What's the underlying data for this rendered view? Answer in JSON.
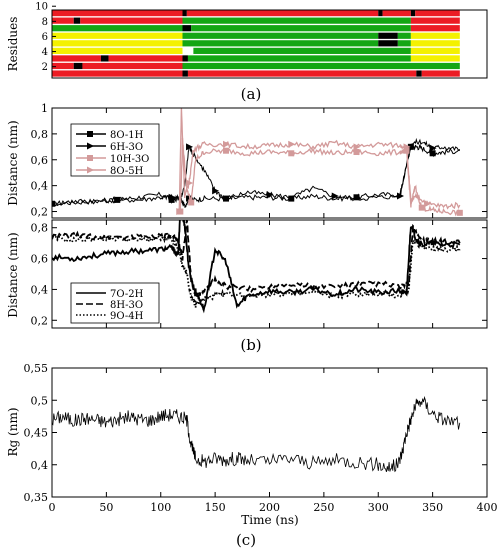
{
  "panel_labels": {
    "a": "(a)",
    "b": "(b)",
    "c": "(c)"
  },
  "colors": {
    "ss_red": "#ec1c24",
    "ss_yellow": "#f4f100",
    "ss_green": "#14a614",
    "ss_black": "#000000",
    "pink": "#d39a9a",
    "line": "#000000"
  },
  "chart_data": [
    {
      "type": "heatmap",
      "panel": "(a)",
      "title": "",
      "xlabel": "",
      "ylabel": "Residues",
      "x_range_ns": [
        0,
        375
      ],
      "ylim": [
        1,
        10
      ],
      "yticks": [
        "2",
        "4",
        "6",
        "8",
        "10"
      ],
      "legend": "none",
      "rows": [
        {
          "residue": 1,
          "segments": [
            [
              "red",
              0,
              120
            ],
            [
              "black",
              120,
              125
            ],
            [
              "red",
              125,
              335
            ],
            [
              "black",
              335,
              340
            ],
            [
              "red",
              340,
              375
            ]
          ]
        },
        {
          "residue": 2,
          "segments": [
            [
              "red",
              0,
              20
            ],
            [
              "black",
              20,
              28
            ],
            [
              "red",
              28,
              120
            ],
            [
              "green",
              120,
              375
            ]
          ]
        },
        {
          "residue": 3,
          "segments": [
            [
              "red",
              0,
              45
            ],
            [
              "black",
              45,
              52
            ],
            [
              "red",
              52,
              120
            ],
            [
              "black",
              120,
              125
            ],
            [
              "green",
              125,
              330
            ],
            [
              "yellow",
              330,
              375
            ]
          ]
        },
        {
          "residue": 4,
          "segments": [
            [
              "yellow",
              0,
              120
            ],
            [
              "white",
              120,
              130
            ],
            [
              "green",
              130,
              330
            ],
            [
              "yellow",
              330,
              375
            ]
          ]
        },
        {
          "residue": 5,
          "segments": [
            [
              "yellow",
              0,
              120
            ],
            [
              "green",
              120,
              300
            ],
            [
              "black",
              300,
              318
            ],
            [
              "green",
              318,
              330
            ],
            [
              "yellow",
              330,
              375
            ]
          ]
        },
        {
          "residue": 6,
          "segments": [
            [
              "yellow",
              0,
              120
            ],
            [
              "green",
              120,
              300
            ],
            [
              "black",
              300,
              318
            ],
            [
              "green",
              318,
              330
            ],
            [
              "yellow",
              330,
              375
            ]
          ]
        },
        {
          "residue": 7,
          "segments": [
            [
              "green",
              0,
              120
            ],
            [
              "black",
              120,
              128
            ],
            [
              "green",
              128,
              330
            ],
            [
              "red",
              330,
              375
            ]
          ]
        },
        {
          "residue": 8,
          "segments": [
            [
              "red",
              0,
              20
            ],
            [
              "black",
              20,
              26
            ],
            [
              "red",
              26,
              120
            ],
            [
              "green",
              120,
              330
            ],
            [
              "red",
              330,
              375
            ]
          ]
        },
        {
          "residue": 9,
          "segments": [
            [
              "red",
              0,
              120
            ],
            [
              "black",
              120,
              124
            ],
            [
              "red",
              124,
              300
            ],
            [
              "black",
              300,
              304
            ],
            [
              "red",
              304,
              330
            ],
            [
              "black",
              330,
              334
            ],
            [
              "red",
              334,
              375
            ]
          ]
        }
      ]
    },
    {
      "type": "line",
      "panel": "(b) upper",
      "title": "",
      "xlabel": "",
      "ylabel": "Distance (nm)",
      "xlim": [
        0,
        400
      ],
      "ylim": [
        0.15,
        1.0
      ],
      "yticks": [
        "0,2",
        "0,4",
        "0,6",
        "0,8",
        "1"
      ],
      "legend_placement": "top-left",
      "series": [
        {
          "name": "8O-1H",
          "color": "#000000",
          "marker": "square",
          "x": [
            0,
            20,
            40,
            60,
            80,
            100,
            110,
            118,
            122,
            126,
            130,
            140,
            160,
            180,
            200,
            220,
            240,
            260,
            280,
            300,
            320,
            330,
            335,
            340,
            350,
            360,
            375
          ],
          "y": [
            0.26,
            0.27,
            0.28,
            0.29,
            0.31,
            0.33,
            0.29,
            0.3,
            0.24,
            0.3,
            0.29,
            0.3,
            0.3,
            0.31,
            0.31,
            0.3,
            0.32,
            0.3,
            0.31,
            0.33,
            0.33,
            0.7,
            0.7,
            0.69,
            0.65,
            0.66,
            0.67
          ]
        },
        {
          "name": "6H-3O",
          "color": "#000000",
          "marker": "triangle-right",
          "x": [
            0,
            20,
            40,
            60,
            80,
            100,
            110,
            118,
            122,
            126,
            130,
            140,
            150,
            160,
            180,
            200,
            220,
            240,
            260,
            280,
            300,
            320,
            330,
            340,
            350,
            360,
            375
          ],
          "y": [
            0.26,
            0.28,
            0.28,
            0.29,
            0.29,
            0.31,
            0.31,
            0.3,
            0.4,
            0.7,
            0.64,
            0.52,
            0.36,
            0.3,
            0.35,
            0.33,
            0.31,
            0.38,
            0.32,
            0.3,
            0.31,
            0.32,
            0.73,
            0.74,
            0.69,
            0.7,
            0.68
          ]
        },
        {
          "name": "10H-3O",
          "color": "#d39a9a",
          "marker": "square",
          "x": [
            118,
            120,
            124,
            128,
            132,
            140,
            160,
            180,
            200,
            220,
            240,
            260,
            280,
            300,
            320,
            326,
            330,
            334,
            340,
            350,
            360,
            375
          ],
          "y": [
            0.2,
            0.75,
            0.38,
            0.27,
            0.6,
            0.66,
            0.67,
            0.65,
            0.66,
            0.65,
            0.67,
            0.65,
            0.66,
            0.65,
            0.66,
            0.67,
            0.25,
            0.39,
            0.23,
            0.21,
            0.2,
            0.19
          ]
        },
        {
          "name": "8O-5H",
          "color": "#d39a9a",
          "marker": "triangle-right",
          "x": [
            117,
            119,
            122,
            126,
            130,
            140,
            160,
            180,
            200,
            220,
            240,
            260,
            280,
            300,
            320,
            326,
            330,
            336,
            345,
            360,
            375
          ],
          "y": [
            0.2,
            1.0,
            0.32,
            0.42,
            0.68,
            0.72,
            0.72,
            0.7,
            0.71,
            0.72,
            0.7,
            0.73,
            0.7,
            0.72,
            0.71,
            0.7,
            0.28,
            0.32,
            0.26,
            0.24,
            0.25
          ]
        }
      ]
    },
    {
      "type": "line",
      "panel": "(b) lower",
      "title": "",
      "xlabel": "",
      "ylabel": "Distance (nm)",
      "xlim": [
        0,
        400
      ],
      "ylim": [
        0.15,
        0.85
      ],
      "yticks": [
        "0,2",
        "0,4",
        "0,6",
        "0,8"
      ],
      "legend_placement": "bottom-left",
      "series": [
        {
          "name": "7O-2H",
          "style": "solid",
          "x": [
            0,
            20,
            40,
            60,
            80,
            100,
            110,
            116,
            118,
            122,
            126,
            130,
            134,
            140,
            150,
            160,
            170,
            180,
            200,
            220,
            240,
            260,
            280,
            300,
            320,
            326,
            330,
            334,
            340,
            350,
            360,
            375
          ],
          "y": [
            0.61,
            0.6,
            0.62,
            0.64,
            0.65,
            0.66,
            0.67,
            0.62,
            0.9,
            0.82,
            0.53,
            0.42,
            0.36,
            0.27,
            0.66,
            0.58,
            0.29,
            0.36,
            0.39,
            0.38,
            0.4,
            0.37,
            0.4,
            0.38,
            0.39,
            0.37,
            0.82,
            0.74,
            0.69,
            0.7,
            0.69,
            0.69
          ]
        },
        {
          "name": "8H-3O",
          "style": "dashed",
          "x": [
            0,
            20,
            40,
            60,
            80,
            100,
            110,
            116,
            120,
            124,
            128,
            132,
            140,
            150,
            160,
            180,
            200,
            220,
            240,
            260,
            280,
            300,
            320,
            328,
            332,
            340,
            350,
            360,
            375
          ],
          "y": [
            0.74,
            0.75,
            0.74,
            0.74,
            0.74,
            0.75,
            0.74,
            0.72,
            0.6,
            0.85,
            0.46,
            0.35,
            0.4,
            0.46,
            0.42,
            0.4,
            0.42,
            0.44,
            0.42,
            0.42,
            0.43,
            0.44,
            0.42,
            0.43,
            0.8,
            0.72,
            0.71,
            0.71,
            0.7
          ]
        },
        {
          "name": "9O-4H",
          "style": "dotted",
          "x": [
            0,
            20,
            40,
            60,
            80,
            100,
            110,
            116,
            120,
            124,
            128,
            132,
            140,
            150,
            160,
            180,
            200,
            220,
            240,
            260,
            280,
            300,
            320,
            328,
            332,
            340,
            350,
            360,
            375
          ],
          "y": [
            0.73,
            0.72,
            0.73,
            0.73,
            0.72,
            0.73,
            0.72,
            0.66,
            0.56,
            0.5,
            0.35,
            0.3,
            0.34,
            0.36,
            0.37,
            0.36,
            0.37,
            0.37,
            0.38,
            0.36,
            0.37,
            0.37,
            0.36,
            0.4,
            0.72,
            0.68,
            0.66,
            0.66,
            0.66
          ]
        }
      ]
    },
    {
      "type": "line",
      "panel": "(c)",
      "title": "",
      "xlabel": "Time (ns)",
      "ylabel": "Rg (nm)",
      "xlim": [
        0,
        400
      ],
      "ylim": [
        0.35,
        0.55
      ],
      "xticks": [
        "0",
        "50",
        "100",
        "150",
        "200",
        "250",
        "300",
        "350",
        "400"
      ],
      "yticks": [
        "0,35",
        "0,4",
        "0,45",
        "0,5",
        "0,55"
      ],
      "legend": "none",
      "series": [
        {
          "name": "",
          "color": "#000000",
          "x": [
            0,
            10,
            20,
            30,
            40,
            50,
            60,
            70,
            80,
            90,
            100,
            110,
            118,
            124,
            128,
            132,
            140,
            150,
            160,
            170,
            180,
            200,
            220,
            240,
            260,
            280,
            300,
            310,
            318,
            322,
            326,
            330,
            334,
            340,
            350,
            360,
            375
          ],
          "y": [
            0.47,
            0.475,
            0.468,
            0.472,
            0.47,
            0.466,
            0.47,
            0.474,
            0.471,
            0.469,
            0.476,
            0.478,
            0.475,
            0.47,
            0.43,
            0.41,
            0.405,
            0.41,
            0.408,
            0.41,
            0.406,
            0.405,
            0.41,
            0.402,
            0.407,
            0.405,
            0.4,
            0.395,
            0.4,
            0.42,
            0.45,
            0.47,
            0.49,
            0.5,
            0.48,
            0.47,
            0.465
          ]
        }
      ]
    }
  ]
}
